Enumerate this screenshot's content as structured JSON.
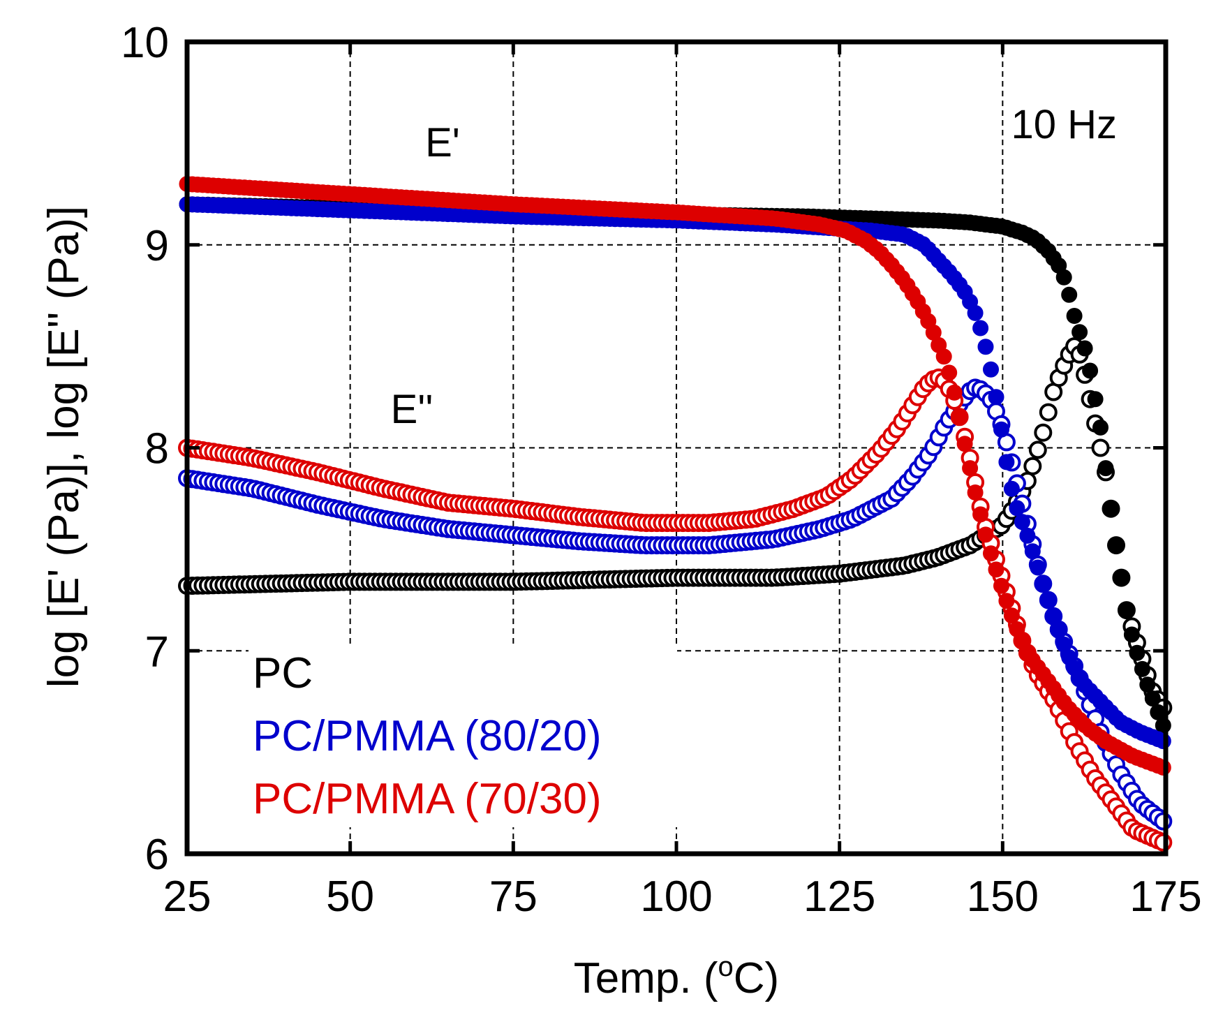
{
  "chart_data": {
    "type": "scatter",
    "title": "",
    "xlabel": "Temp. (°C)",
    "xlabel_prefix": "Temp. (",
    "xlabel_unit_sup": "o",
    "xlabel_unit": "C)",
    "ylabel": "log [E' (Pa)], log [E'' (Pa)]",
    "xlim": [
      25,
      175
    ],
    "ylim": [
      6,
      10
    ],
    "x_ticks": [
      25,
      50,
      75,
      100,
      125,
      150,
      175
    ],
    "y_ticks": [
      6,
      7,
      8,
      9,
      10
    ],
    "x_tick_labels": [
      "25",
      "50",
      "75",
      "100",
      "125",
      "150",
      "175"
    ],
    "y_tick_labels": [
      "6",
      "7",
      "8",
      "9",
      "10"
    ],
    "grid": true,
    "annotations": {
      "frequency": "10 Hz",
      "storage_label": "E'",
      "loss_label": "E''"
    },
    "legend": {
      "placement": "bottom-left",
      "entries": [
        {
          "label": "PC",
          "color": "#000000"
        },
        {
          "label": "PC/PMMA (80/20)",
          "color": "#0000cc"
        },
        {
          "label": "PC/PMMA (70/30)",
          "color": "#dd0000"
        }
      ]
    },
    "marker_legend": {
      "filled": "E'",
      "open": "E''"
    },
    "series": [
      {
        "name": "PC E'",
        "color": "#000000",
        "marker": "filled",
        "points": [
          [
            25,
            9.2
          ],
          [
            50,
            9.18
          ],
          [
            75,
            9.16
          ],
          [
            100,
            9.15
          ],
          [
            120,
            9.14
          ],
          [
            130,
            9.13
          ],
          [
            140,
            9.12
          ],
          [
            145,
            9.11
          ],
          [
            150,
            9.09
          ],
          [
            153,
            9.06
          ],
          [
            155,
            9.03
          ],
          [
            157,
            8.97
          ],
          [
            159,
            8.88
          ],
          [
            160,
            8.78
          ],
          [
            161,
            8.65
          ],
          [
            163,
            8.45
          ],
          [
            165,
            8.1
          ],
          [
            166,
            7.85
          ],
          [
            167,
            7.6
          ],
          [
            168,
            7.4
          ],
          [
            169,
            7.2
          ],
          [
            170,
            7.05
          ],
          [
            172,
            6.85
          ],
          [
            174,
            6.68
          ],
          [
            175,
            6.6
          ]
        ]
      },
      {
        "name": "PC E''",
        "color": "#000000",
        "marker": "open",
        "points": [
          [
            25,
            7.32
          ],
          [
            50,
            7.34
          ],
          [
            75,
            7.34
          ],
          [
            100,
            7.36
          ],
          [
            115,
            7.36
          ],
          [
            125,
            7.38
          ],
          [
            135,
            7.42
          ],
          [
            140,
            7.46
          ],
          [
            145,
            7.52
          ],
          [
            150,
            7.62
          ],
          [
            152,
            7.72
          ],
          [
            154,
            7.85
          ],
          [
            156,
            8.05
          ],
          [
            158,
            8.3
          ],
          [
            160,
            8.45
          ],
          [
            161,
            8.5
          ],
          [
            162,
            8.45
          ],
          [
            163,
            8.3
          ],
          [
            164,
            8.15
          ],
          [
            165,
            8.0
          ],
          [
            166,
            7.85
          ],
          [
            167,
            7.6
          ],
          [
            168,
            7.4
          ],
          [
            169,
            7.2
          ],
          [
            171,
            7.0
          ],
          [
            173,
            6.8
          ],
          [
            175,
            6.7
          ]
        ]
      },
      {
        "name": "PC/PMMA (80/20) E'",
        "color": "#0000cc",
        "marker": "filled",
        "points": [
          [
            25,
            9.2
          ],
          [
            50,
            9.17
          ],
          [
            75,
            9.14
          ],
          [
            100,
            9.12
          ],
          [
            115,
            9.1
          ],
          [
            125,
            9.08
          ],
          [
            130,
            9.07
          ],
          [
            135,
            9.05
          ],
          [
            138,
            9.0
          ],
          [
            140,
            8.93
          ],
          [
            142,
            8.86
          ],
          [
            144,
            8.78
          ],
          [
            145,
            8.72
          ],
          [
            146,
            8.65
          ],
          [
            147,
            8.55
          ],
          [
            148,
            8.42
          ],
          [
            149,
            8.25
          ],
          [
            150,
            8.05
          ],
          [
            151,
            7.85
          ],
          [
            152,
            7.72
          ],
          [
            154,
            7.55
          ],
          [
            156,
            7.35
          ],
          [
            158,
            7.15
          ],
          [
            160,
            6.98
          ],
          [
            162,
            6.85
          ],
          [
            165,
            6.75
          ],
          [
            168,
            6.65
          ],
          [
            171,
            6.6
          ],
          [
            175,
            6.55
          ]
        ]
      },
      {
        "name": "PC/PMMA (80/20) E''",
        "color": "#0000cc",
        "marker": "open",
        "points": [
          [
            25,
            7.85
          ],
          [
            35,
            7.8
          ],
          [
            45,
            7.72
          ],
          [
            55,
            7.65
          ],
          [
            65,
            7.6
          ],
          [
            75,
            7.57
          ],
          [
            85,
            7.54
          ],
          [
            95,
            7.52
          ],
          [
            105,
            7.52
          ],
          [
            115,
            7.55
          ],
          [
            122,
            7.6
          ],
          [
            127,
            7.65
          ],
          [
            130,
            7.7
          ],
          [
            133,
            7.75
          ],
          [
            136,
            7.85
          ],
          [
            139,
            7.98
          ],
          [
            141,
            8.1
          ],
          [
            143,
            8.2
          ],
          [
            145,
            8.28
          ],
          [
            146,
            8.3
          ],
          [
            147,
            8.28
          ],
          [
            148,
            8.25
          ],
          [
            149,
            8.18
          ],
          [
            150,
            8.1
          ],
          [
            151,
            7.98
          ],
          [
            152,
            7.85
          ],
          [
            154,
            7.6
          ],
          [
            156,
            7.35
          ],
          [
            158,
            7.15
          ],
          [
            160,
            7.0
          ],
          [
            162,
            6.85
          ],
          [
            165,
            6.6
          ],
          [
            168,
            6.4
          ],
          [
            171,
            6.25
          ],
          [
            175,
            6.15
          ]
        ]
      },
      {
        "name": "PC/PMMA (70/30) E'",
        "color": "#dd0000",
        "marker": "filled",
        "points": [
          [
            25,
            9.3
          ],
          [
            50,
            9.25
          ],
          [
            75,
            9.2
          ],
          [
            100,
            9.16
          ],
          [
            115,
            9.13
          ],
          [
            122,
            9.1
          ],
          [
            126,
            9.07
          ],
          [
            129,
            9.02
          ],
          [
            131,
            8.97
          ],
          [
            133,
            8.9
          ],
          [
            135,
            8.82
          ],
          [
            137,
            8.72
          ],
          [
            139,
            8.6
          ],
          [
            140,
            8.52
          ],
          [
            141,
            8.45
          ],
          [
            142,
            8.35
          ],
          [
            143,
            8.22
          ],
          [
            144,
            8.05
          ],
          [
            145,
            7.9
          ],
          [
            146,
            7.75
          ],
          [
            147,
            7.62
          ],
          [
            148,
            7.5
          ],
          [
            150,
            7.3
          ],
          [
            152,
            7.12
          ],
          [
            154,
            6.98
          ],
          [
            157,
            6.85
          ],
          [
            160,
            6.72
          ],
          [
            163,
            6.62
          ],
          [
            166,
            6.55
          ],
          [
            170,
            6.48
          ],
          [
            175,
            6.42
          ]
        ]
      },
      {
        "name": "PC/PMMA (70/30) E''",
        "color": "#dd0000",
        "marker": "open",
        "points": [
          [
            25,
            8.0
          ],
          [
            35,
            7.95
          ],
          [
            45,
            7.88
          ],
          [
            55,
            7.8
          ],
          [
            65,
            7.73
          ],
          [
            75,
            7.7
          ],
          [
            85,
            7.66
          ],
          [
            95,
            7.63
          ],
          [
            105,
            7.63
          ],
          [
            112,
            7.65
          ],
          [
            118,
            7.7
          ],
          [
            123,
            7.76
          ],
          [
            127,
            7.85
          ],
          [
            131,
            7.98
          ],
          [
            134,
            8.1
          ],
          [
            136,
            8.2
          ],
          [
            138,
            8.3
          ],
          [
            139,
            8.33
          ],
          [
            140,
            8.35
          ],
          [
            141,
            8.33
          ],
          [
            142,
            8.28
          ],
          [
            143,
            8.2
          ],
          [
            144,
            8.08
          ],
          [
            145,
            7.95
          ],
          [
            146,
            7.8
          ],
          [
            147,
            7.65
          ],
          [
            149,
            7.45
          ],
          [
            151,
            7.25
          ],
          [
            153,
            7.05
          ],
          [
            155,
            6.9
          ],
          [
            158,
            6.75
          ],
          [
            161,
            6.55
          ],
          [
            164,
            6.38
          ],
          [
            167,
            6.25
          ],
          [
            170,
            6.12
          ],
          [
            175,
            6.05
          ]
        ]
      }
    ]
  }
}
